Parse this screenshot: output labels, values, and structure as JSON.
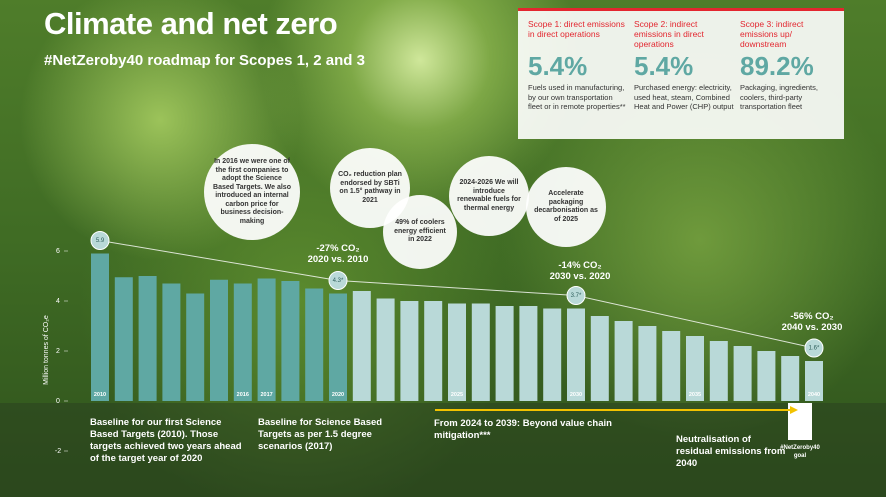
{
  "header": {
    "title": "Climate and net zero",
    "subtitle": "#NetZeroby40 roadmap for Scopes 1, 2 and 3"
  },
  "scopes": [
    {
      "title": "Scope 1: direct emissions in direct operations",
      "value": "5.4%",
      "description": "Fuels used in manufacturing, by our own transportation fleet or in remote properties**"
    },
    {
      "title": "Scope 2: indirect emissions in direct operations",
      "value": "5.4%",
      "description": "Purchased energy: electricity, used heat, steam, Combined Heat and Power (CHP) output"
    },
    {
      "title": "Scope 3: indirect emissions up/ downstream",
      "value": "89.2%",
      "description": "Packaging, ingredients, coolers, third-party transportation fleet"
    }
  ],
  "milestones": [
    "In 2016 we were one of the first companies to adopt the Science Based Targets. We also introduced an internal carbon price for business decision-making",
    "CO₂ reduction plan endorsed by SBTi on 1.5° pathway in 2021",
    "49% of coolers energy efficient in 2022",
    "2024-2026 We will introduce renewable fuels for thermal energy",
    "Accelerate packaging decarbonisation as of 2025"
  ],
  "captions": [
    "Baseline for our first Science Based Targets (2010). Those targets achieved two years ahead of the target year of 2020",
    "Baseline for Science Based Targets as per 1.5 degree scenarios (2017)",
    "From 2024 to 2039: Beyond value chain mitigation***",
    "Neutralisation of residual emissions from 2040",
    "#NetZeroby40 goal"
  ],
  "chart_data": {
    "type": "bar",
    "y_label": "Million tonnes of CO₂e",
    "categories": [
      "2010",
      null,
      null,
      null,
      null,
      null,
      "2016",
      "2017",
      null,
      null,
      "2020",
      null,
      null,
      null,
      null,
      "2025",
      null,
      null,
      null,
      null,
      "2030",
      null,
      null,
      null,
      null,
      "2035",
      null,
      null,
      null,
      null,
      "2040"
    ],
    "values": [
      5.9,
      4.95,
      5.0,
      4.7,
      4.3,
      4.85,
      4.7,
      4.9,
      4.8,
      4.5,
      4.3,
      4.4,
      4.1,
      4.0,
      4.0,
      3.9,
      3.9,
      3.8,
      3.8,
      3.7,
      3.7,
      3.4,
      3.2,
      3.0,
      2.8,
      2.6,
      2.4,
      2.2,
      2.0,
      1.8,
      1.6
    ],
    "value_labels": [
      "5.9",
      null,
      null,
      null,
      null,
      null,
      null,
      null,
      null,
      null,
      "4.3*",
      null,
      null,
      null,
      null,
      null,
      null,
      null,
      null,
      null,
      "3.7*",
      null,
      null,
      null,
      null,
      null,
      null,
      null,
      null,
      null,
      "1.6*"
    ],
    "colors": [
      "#5fa8a3",
      "#5fa8a3",
      "#5fa8a3",
      "#5fa8a3",
      "#5fa8a3",
      "#5fa8a3",
      "#5fa8a3",
      "#5fa8a3",
      "#5fa8a3",
      "#5fa8a3",
      "#5fa8a3",
      "#b9d9d8",
      "#b9d9d8",
      "#b9d9d8",
      "#b9d9d8",
      "#b9d9d8",
      "#b9d9d8",
      "#b9d9d8",
      "#b9d9d8",
      "#b9d9d8",
      "#b9d9d8",
      "#b9d9d8",
      "#b9d9d8",
      "#b9d9d8",
      "#b9d9d8",
      "#b9d9d8",
      "#b9d9d8",
      "#b9d9d8",
      "#b9d9d8",
      "#b9d9d8",
      "#b9d9d8"
    ],
    "annotations": [
      {
        "title": "-27% CO₂",
        "subtitle": "2020 vs. 2010"
      },
      {
        "title": "-14% CO₂",
        "subtitle": "2030 vs. 2020"
      },
      {
        "title": "-56% CO₂",
        "subtitle": "2040 vs. 2030"
      }
    ],
    "ylim": [
      -2.5,
      6.5
    ],
    "yticks": [
      -2,
      0,
      2,
      4,
      6
    ]
  }
}
